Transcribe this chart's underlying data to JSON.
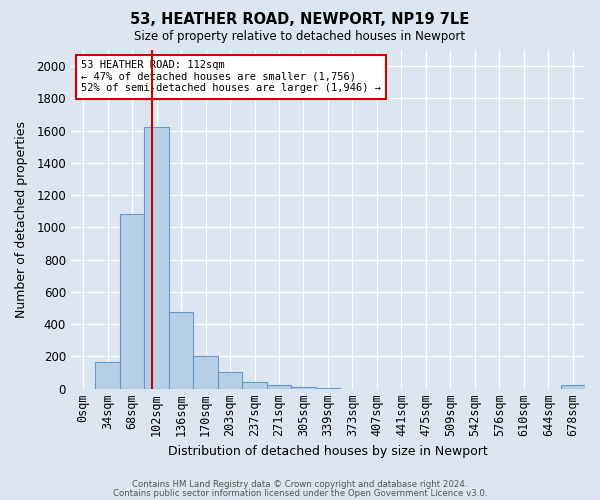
{
  "title1": "53, HEATHER ROAD, NEWPORT, NP19 7LE",
  "title2": "Size of property relative to detached houses in Newport",
  "xlabel": "Distribution of detached houses by size in Newport",
  "ylabel": "Number of detached properties",
  "bar_labels": [
    "0sqm",
    "34sqm",
    "68sqm",
    "102sqm",
    "136sqm",
    "170sqm",
    "203sqm",
    "237sqm",
    "271sqm",
    "305sqm",
    "339sqm",
    "373sqm",
    "407sqm",
    "441sqm",
    "475sqm",
    "509sqm",
    "542sqm",
    "576sqm",
    "610sqm",
    "644sqm",
    "678sqm"
  ],
  "bar_values": [
    0,
    165,
    1080,
    1620,
    475,
    200,
    100,
    40,
    20,
    10,
    5,
    0,
    0,
    0,
    0,
    0,
    0,
    0,
    0,
    0,
    20
  ],
  "bar_color": "#b8cfe8",
  "bar_edgecolor": "#6699cc",
  "bg_color": "#dce6f0",
  "vline_color": "#cc0000",
  "annotation_text": "53 HEATHER ROAD: 112sqm\n← 47% of detached houses are smaller (1,756)\n52% of semi-detached houses are larger (1,946) →",
  "annotation_box_color": "#ffffff",
  "annotation_box_edgecolor": "#cc0000",
  "ylim": [
    0,
    2100
  ],
  "yticks": [
    0,
    200,
    400,
    600,
    800,
    1000,
    1200,
    1400,
    1600,
    1800,
    2000
  ],
  "footnote1": "Contains HM Land Registry data © Crown copyright and database right 2024.",
  "footnote2": "Contains public sector information licensed under the Open Government Licence v3.0."
}
